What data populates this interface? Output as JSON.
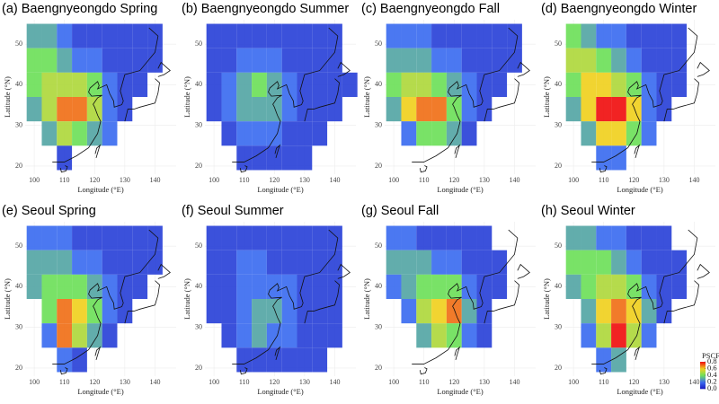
{
  "chart_data": [
    {
      "type": "heatmap",
      "title": "(a) Baengnyeongdo Spring",
      "xlabel": "Longitude (°E)",
      "ylabel": "Latitude (°N)",
      "x": [
        100,
        105,
        110,
        115,
        120,
        125,
        130,
        135,
        140,
        145
      ],
      "y": [
        52,
        46,
        40,
        34,
        28,
        22
      ],
      "values": [
        [
          0.3,
          0.3,
          0.2,
          0.1,
          0.1,
          0.1,
          0.1,
          0.1,
          0.1,
          null
        ],
        [
          0.4,
          0.4,
          0.3,
          0.2,
          0.2,
          0.1,
          0.1,
          0.1,
          0.1,
          null
        ],
        [
          0.4,
          0.5,
          0.5,
          0.5,
          0.4,
          0.2,
          0.1,
          0.1,
          null,
          null
        ],
        [
          0.3,
          0.5,
          0.7,
          0.7,
          0.5,
          0.2,
          0.1,
          null,
          null,
          null
        ],
        [
          null,
          0.3,
          0.5,
          0.4,
          0.3,
          0.2,
          null,
          null,
          null,
          null
        ],
        [
          null,
          null,
          0.1,
          null,
          null,
          null,
          null,
          null,
          null,
          null
        ]
      ],
      "xlim": [
        97,
        147
      ],
      "ylim": [
        18,
        56
      ],
      "xticks": [
        100,
        110,
        120,
        130,
        140
      ],
      "yticks": [
        20,
        30,
        40,
        50
      ]
    },
    {
      "type": "heatmap",
      "title": "(b) Baengnyeongdo Summer",
      "xlabel": "Longitude (°E)",
      "ylabel": "Latitude (°N)",
      "x": [
        100,
        105,
        110,
        115,
        120,
        125,
        130,
        135,
        140,
        145
      ],
      "y": [
        52,
        46,
        40,
        34,
        28,
        22
      ],
      "values": [
        [
          0.1,
          0.1,
          0.1,
          0.1,
          0.1,
          0.1,
          0.1,
          0.1,
          0.1,
          null
        ],
        [
          0.1,
          0.1,
          0.2,
          0.2,
          0.2,
          0.1,
          0.1,
          0.1,
          0.1,
          null
        ],
        [
          0.1,
          0.2,
          0.3,
          0.4,
          0.3,
          0.2,
          0.1,
          0.1,
          0.1,
          0.1
        ],
        [
          0.1,
          0.2,
          0.3,
          0.3,
          0.3,
          0.2,
          0.1,
          0.1,
          0.1,
          null
        ],
        [
          null,
          0.1,
          0.2,
          0.2,
          0.2,
          0.1,
          0.1,
          0.1,
          null,
          null
        ],
        [
          null,
          null,
          0.1,
          0.1,
          0.1,
          0.1,
          0.1,
          null,
          null,
          null
        ]
      ],
      "xlim": [
        97,
        147
      ],
      "ylim": [
        18,
        56
      ],
      "xticks": [
        100,
        110,
        120,
        130,
        140
      ],
      "yticks": [
        20,
        30,
        40,
        50
      ]
    },
    {
      "type": "heatmap",
      "title": "(c) Baengnyeongdo Fall",
      "xlabel": "Longitude (°E)",
      "ylabel": "Latitude (°N)",
      "x": [
        100,
        105,
        110,
        115,
        120,
        125,
        130,
        135,
        140,
        145
      ],
      "y": [
        52,
        46,
        40,
        34,
        28,
        22
      ],
      "values": [
        [
          0.2,
          0.2,
          0.2,
          0.1,
          0.1,
          0.1,
          0.1,
          0.1,
          0.1,
          null
        ],
        [
          0.3,
          0.3,
          0.3,
          0.2,
          0.2,
          0.1,
          0.1,
          0.1,
          0.1,
          null
        ],
        [
          0.4,
          0.5,
          0.5,
          0.4,
          0.3,
          0.2,
          0.1,
          0.1,
          null,
          null
        ],
        [
          0.3,
          0.6,
          0.7,
          0.7,
          0.4,
          0.2,
          0.1,
          null,
          null,
          null
        ],
        [
          null,
          0.2,
          0.4,
          0.4,
          0.3,
          0.1,
          null,
          null,
          null,
          null
        ],
        [
          null,
          null,
          null,
          null,
          null,
          null,
          null,
          null,
          null,
          null
        ]
      ],
      "xlim": [
        97,
        147
      ],
      "ylim": [
        18,
        56
      ],
      "xticks": [
        100,
        110,
        120,
        130,
        140
      ],
      "yticks": [
        20,
        30,
        40,
        50
      ]
    },
    {
      "type": "heatmap",
      "title": "(d) Baengnyeongdo Winter",
      "xlabel": "Longitude (°E)",
      "ylabel": "Latitude (°N)",
      "x": [
        100,
        105,
        110,
        115,
        120,
        125,
        130,
        135,
        140,
        145
      ],
      "y": [
        52,
        46,
        40,
        34,
        28,
        22
      ],
      "values": [
        [
          0.4,
          0.3,
          0.2,
          0.2,
          0.1,
          0.1,
          0.1,
          0.1,
          null,
          null
        ],
        [
          0.5,
          0.5,
          0.4,
          0.3,
          0.2,
          0.1,
          0.1,
          0.1,
          null,
          null
        ],
        [
          0.4,
          0.6,
          0.6,
          0.5,
          0.4,
          0.2,
          0.1,
          0.1,
          null,
          null
        ],
        [
          0.3,
          0.6,
          0.8,
          0.8,
          0.6,
          0.2,
          0.1,
          null,
          null,
          null
        ],
        [
          null,
          0.3,
          0.6,
          0.6,
          0.4,
          0.2,
          null,
          null,
          null,
          null
        ],
        [
          null,
          null,
          0.2,
          0.2,
          null,
          null,
          null,
          null,
          null,
          null
        ]
      ],
      "xlim": [
        97,
        147
      ],
      "ylim": [
        18,
        56
      ],
      "xticks": [
        100,
        110,
        120,
        130,
        140
      ],
      "yticks": [
        20,
        30,
        40,
        50
      ]
    },
    {
      "type": "heatmap",
      "title": "(e) Seoul Spring",
      "xlabel": "Longitude (°E)",
      "ylabel": "Latitude (°N)",
      "x": [
        100,
        105,
        110,
        115,
        120,
        125,
        130,
        135,
        140,
        145
      ],
      "y": [
        52,
        46,
        40,
        34,
        28,
        22
      ],
      "values": [
        [
          0.2,
          0.2,
          0.2,
          0.1,
          0.1,
          0.1,
          0.1,
          0.1,
          0.1,
          null
        ],
        [
          0.3,
          0.3,
          0.3,
          0.2,
          0.2,
          0.1,
          0.1,
          0.1,
          0.1,
          null
        ],
        [
          0.3,
          0.4,
          0.4,
          0.4,
          0.3,
          0.2,
          0.1,
          0.1,
          null,
          null
        ],
        [
          null,
          0.4,
          0.7,
          0.6,
          0.4,
          0.2,
          0.1,
          null,
          null,
          null
        ],
        [
          null,
          0.2,
          0.7,
          0.5,
          0.3,
          0.1,
          null,
          null,
          null,
          null
        ],
        [
          null,
          null,
          0.2,
          0.1,
          null,
          null,
          null,
          null,
          null,
          null
        ]
      ],
      "xlim": [
        97,
        147
      ],
      "ylim": [
        18,
        56
      ],
      "xticks": [
        100,
        110,
        120,
        130,
        140
      ],
      "yticks": [
        20,
        30,
        40,
        50
      ]
    },
    {
      "type": "heatmap",
      "title": "(f) Seoul Summer",
      "xlabel": "Longitude (°E)",
      "ylabel": "Latitude (°N)",
      "x": [
        100,
        105,
        110,
        115,
        120,
        125,
        130,
        135,
        140,
        145
      ],
      "y": [
        52,
        46,
        40,
        34,
        28,
        22
      ],
      "values": [
        [
          0.1,
          0.1,
          0.1,
          0.1,
          0.1,
          0.1,
          0.1,
          0.1,
          0.1,
          null
        ],
        [
          0.1,
          0.1,
          0.2,
          0.2,
          0.1,
          0.1,
          0.1,
          0.1,
          0.1,
          null
        ],
        [
          0.1,
          0.1,
          0.2,
          0.2,
          0.2,
          0.2,
          0.1,
          0.1,
          0.1,
          null
        ],
        [
          0.1,
          0.1,
          0.2,
          0.3,
          0.3,
          0.2,
          0.1,
          0.1,
          0.1,
          null
        ],
        [
          null,
          0.1,
          0.2,
          0.3,
          0.2,
          0.2,
          0.1,
          0.1,
          0.1,
          null
        ],
        [
          null,
          null,
          0.1,
          0.1,
          0.1,
          0.1,
          0.1,
          0.1,
          null,
          null
        ]
      ],
      "xlim": [
        97,
        147
      ],
      "ylim": [
        18,
        56
      ],
      "xticks": [
        100,
        110,
        120,
        130,
        140
      ],
      "yticks": [
        20,
        30,
        40,
        50
      ]
    },
    {
      "type": "heatmap",
      "title": "(g) Seoul Fall",
      "xlabel": "Longitude (°E)",
      "ylabel": "Latitude (°N)",
      "x": [
        100,
        105,
        110,
        115,
        120,
        125,
        130,
        135,
        140,
        145
      ],
      "y": [
        52,
        46,
        40,
        34,
        28,
        22
      ],
      "values": [
        [
          0.2,
          0.2,
          0.1,
          0.1,
          0.1,
          0.1,
          0.1,
          null,
          null,
          null
        ],
        [
          0.3,
          0.3,
          0.3,
          0.2,
          0.2,
          0.1,
          0.1,
          0.1,
          null,
          null
        ],
        [
          0.2,
          0.3,
          0.4,
          0.4,
          0.4,
          0.2,
          0.1,
          0.1,
          null,
          null
        ],
        [
          null,
          0.2,
          0.5,
          0.6,
          0.7,
          0.3,
          0.1,
          null,
          null,
          null
        ],
        [
          null,
          null,
          0.3,
          0.5,
          0.4,
          0.2,
          0.1,
          null,
          null,
          null
        ],
        [
          null,
          null,
          null,
          null,
          null,
          null,
          null,
          null,
          null,
          null
        ]
      ],
      "xlim": [
        97,
        147
      ],
      "ylim": [
        18,
        56
      ],
      "xticks": [
        100,
        110,
        120,
        130,
        140
      ],
      "yticks": [
        20,
        30,
        40,
        50
      ]
    },
    {
      "type": "heatmap",
      "title": "(h) Seoul Winter",
      "xlabel": "Longitude (°E)",
      "ylabel": "Latitude (°N)",
      "x": [
        100,
        105,
        110,
        115,
        120,
        125,
        130,
        135,
        140,
        145
      ],
      "y": [
        52,
        46,
        40,
        34,
        28,
        22
      ],
      "values": [
        [
          0.3,
          0.3,
          0.2,
          0.2,
          0.1,
          0.1,
          0.1,
          null,
          null,
          null
        ],
        [
          0.4,
          0.4,
          0.4,
          0.3,
          0.2,
          0.1,
          0.1,
          0.1,
          null,
          null
        ],
        [
          0.3,
          0.4,
          0.5,
          0.5,
          0.4,
          0.2,
          0.1,
          0.1,
          null,
          null
        ],
        [
          null,
          0.3,
          0.6,
          0.7,
          0.6,
          0.3,
          0.1,
          null,
          null,
          null
        ],
        [
          null,
          0.2,
          0.5,
          0.8,
          0.5,
          0.2,
          null,
          null,
          null,
          null
        ],
        [
          null,
          null,
          0.2,
          0.3,
          null,
          null,
          null,
          null,
          null,
          null
        ]
      ],
      "xlim": [
        97,
        147
      ],
      "ylim": [
        18,
        56
      ],
      "xticks": [
        100,
        110,
        120,
        130,
        140
      ],
      "yticks": [
        20,
        30,
        40,
        50
      ],
      "colorbar": {
        "label": "PSCF",
        "ticks": [
          {
            "value": 0,
            "label": "0.0"
          },
          {
            "value": 0.2,
            "label": "0.2"
          },
          {
            "value": 0.4,
            "label": "0.4"
          },
          {
            "value": 0.6,
            "label": "0.6"
          },
          {
            "value": 0.8,
            "label": "0.8"
          }
        ],
        "colors": [
          "#1818c0",
          "#3c6cf0",
          "#6ee05a",
          "#f0d020",
          "#f01010"
        ]
      }
    }
  ]
}
